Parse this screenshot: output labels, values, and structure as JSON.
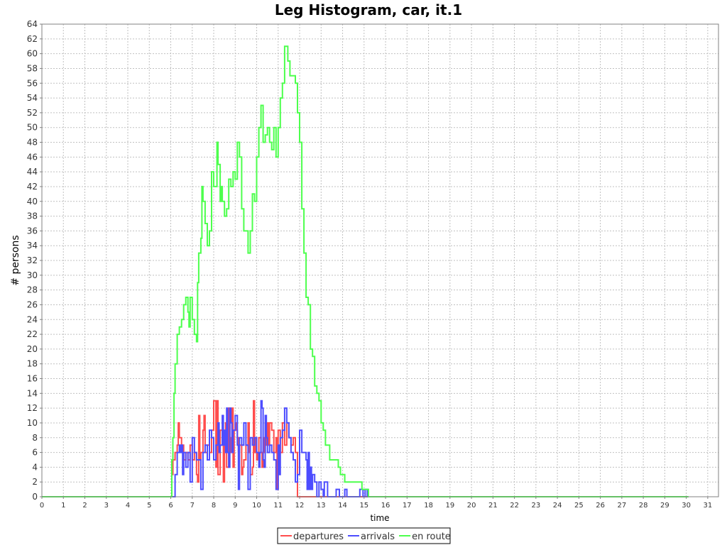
{
  "chart_data": {
    "type": "line",
    "title": "Leg Histogram, car, it.1",
    "xlabel": "time",
    "ylabel": "# persons",
    "xlim": [
      0,
      31.5
    ],
    "ylim": [
      0,
      64
    ],
    "x_ticks": [
      0,
      1,
      2,
      3,
      4,
      5,
      6,
      7,
      8,
      9,
      10,
      11,
      12,
      13,
      14,
      15,
      16,
      17,
      18,
      19,
      20,
      21,
      22,
      23,
      24,
      25,
      26,
      27,
      28,
      29,
      30,
      31
    ],
    "y_ticks": [
      0,
      2,
      4,
      6,
      8,
      10,
      12,
      14,
      16,
      18,
      20,
      22,
      24,
      26,
      28,
      30,
      32,
      34,
      36,
      38,
      40,
      42,
      44,
      46,
      48,
      50,
      52,
      54,
      56,
      58,
      60,
      62,
      64
    ],
    "grid": true,
    "legend_position": "bottom-center",
    "line_style": "step",
    "series": [
      {
        "name": "departures",
        "color": "#ff4d4d",
        "points": [
          [
            0,
            0
          ],
          [
            6,
            0
          ],
          [
            6.05,
            3
          ],
          [
            6.1,
            5
          ],
          [
            6.2,
            6
          ],
          [
            6.3,
            7
          ],
          [
            6.35,
            10
          ],
          [
            6.4,
            8
          ],
          [
            6.5,
            7
          ],
          [
            6.6,
            5
          ],
          [
            6.7,
            6
          ],
          [
            6.8,
            5
          ],
          [
            6.9,
            7
          ],
          [
            7.0,
            5
          ],
          [
            7.1,
            6
          ],
          [
            7.2,
            3
          ],
          [
            7.25,
            2
          ],
          [
            7.3,
            11
          ],
          [
            7.35,
            5
          ],
          [
            7.4,
            6
          ],
          [
            7.5,
            9
          ],
          [
            7.55,
            11
          ],
          [
            7.6,
            6
          ],
          [
            7.7,
            7
          ],
          [
            7.8,
            6
          ],
          [
            7.9,
            9
          ],
          [
            8.0,
            13
          ],
          [
            8.1,
            4
          ],
          [
            8.15,
            13
          ],
          [
            8.2,
            3
          ],
          [
            8.3,
            9
          ],
          [
            8.4,
            7
          ],
          [
            8.45,
            2
          ],
          [
            8.5,
            8
          ],
          [
            8.55,
            10
          ],
          [
            8.6,
            4
          ],
          [
            8.7,
            12
          ],
          [
            8.75,
            6
          ],
          [
            8.8,
            8
          ],
          [
            8.85,
            12
          ],
          [
            8.9,
            4
          ],
          [
            8.95,
            9
          ],
          [
            9.0,
            10
          ],
          [
            9.05,
            9
          ],
          [
            9.1,
            8
          ],
          [
            9.15,
            6
          ],
          [
            9.2,
            7
          ],
          [
            9.3,
            3
          ],
          [
            9.35,
            4
          ],
          [
            9.4,
            5
          ],
          [
            9.5,
            7
          ],
          [
            9.6,
            10
          ],
          [
            9.65,
            6
          ],
          [
            9.7,
            3
          ],
          [
            9.8,
            4
          ],
          [
            9.85,
            13
          ],
          [
            9.9,
            6
          ],
          [
            9.95,
            8
          ],
          [
            10.0,
            5
          ],
          [
            10.05,
            6
          ],
          [
            10.1,
            8
          ],
          [
            10.2,
            6
          ],
          [
            10.25,
            4
          ],
          [
            10.3,
            8
          ],
          [
            10.35,
            6
          ],
          [
            10.4,
            10
          ],
          [
            10.45,
            7
          ],
          [
            10.5,
            10
          ],
          [
            10.55,
            7
          ],
          [
            10.6,
            10
          ],
          [
            10.7,
            9
          ],
          [
            10.8,
            6
          ],
          [
            10.9,
            8
          ],
          [
            10.95,
            1
          ],
          [
            11.0,
            9
          ],
          [
            11.1,
            6
          ],
          [
            11.2,
            10
          ],
          [
            11.3,
            7
          ],
          [
            11.4,
            10
          ],
          [
            11.5,
            8
          ],
          [
            11.6,
            7
          ],
          [
            11.7,
            8
          ],
          [
            11.8,
            6
          ],
          [
            11.9,
            0
          ],
          [
            30.1,
            0
          ]
        ]
      },
      {
        "name": "arrivals",
        "color": "#4d4dff",
        "points": [
          [
            0,
            0
          ],
          [
            6.1,
            0
          ],
          [
            6.2,
            3
          ],
          [
            6.3,
            6
          ],
          [
            6.4,
            7
          ],
          [
            6.45,
            6
          ],
          [
            6.5,
            7
          ],
          [
            6.55,
            3
          ],
          [
            6.6,
            6
          ],
          [
            6.7,
            4
          ],
          [
            6.8,
            6
          ],
          [
            6.9,
            2
          ],
          [
            7.0,
            8
          ],
          [
            7.1,
            6
          ],
          [
            7.2,
            5
          ],
          [
            7.3,
            5
          ],
          [
            7.4,
            1
          ],
          [
            7.5,
            6
          ],
          [
            7.6,
            7
          ],
          [
            7.7,
            5
          ],
          [
            7.8,
            9
          ],
          [
            7.9,
            8
          ],
          [
            8.0,
            5
          ],
          [
            8.1,
            7
          ],
          [
            8.2,
            10
          ],
          [
            8.25,
            6
          ],
          [
            8.3,
            7
          ],
          [
            8.4,
            11
          ],
          [
            8.45,
            7
          ],
          [
            8.5,
            9
          ],
          [
            8.55,
            6
          ],
          [
            8.6,
            12
          ],
          [
            8.65,
            6
          ],
          [
            8.7,
            4
          ],
          [
            8.75,
            12
          ],
          [
            8.8,
            10
          ],
          [
            8.85,
            6
          ],
          [
            8.9,
            9
          ],
          [
            9.0,
            11
          ],
          [
            9.1,
            7
          ],
          [
            9.15,
            1
          ],
          [
            9.2,
            8
          ],
          [
            9.3,
            7
          ],
          [
            9.4,
            10
          ],
          [
            9.5,
            7
          ],
          [
            9.6,
            1
          ],
          [
            9.7,
            8
          ],
          [
            9.8,
            7
          ],
          [
            9.9,
            8
          ],
          [
            10.0,
            6
          ],
          [
            10.1,
            4
          ],
          [
            10.15,
            6
          ],
          [
            10.2,
            13
          ],
          [
            10.25,
            12
          ],
          [
            10.3,
            5
          ],
          [
            10.35,
            4
          ],
          [
            10.4,
            11
          ],
          [
            10.45,
            8
          ],
          [
            10.5,
            6
          ],
          [
            10.6,
            7
          ],
          [
            10.7,
            6
          ],
          [
            10.8,
            5
          ],
          [
            10.9,
            1
          ],
          [
            11.0,
            7
          ],
          [
            11.05,
            3
          ],
          [
            11.1,
            8
          ],
          [
            11.2,
            9
          ],
          [
            11.3,
            12
          ],
          [
            11.4,
            10
          ],
          [
            11.5,
            8
          ],
          [
            11.6,
            6
          ],
          [
            11.7,
            5
          ],
          [
            11.8,
            2
          ],
          [
            11.9,
            3
          ],
          [
            12.0,
            9
          ],
          [
            12.1,
            6
          ],
          [
            12.2,
            6
          ],
          [
            12.3,
            5
          ],
          [
            12.35,
            1
          ],
          [
            12.4,
            6
          ],
          [
            12.45,
            1
          ],
          [
            12.5,
            4
          ],
          [
            12.55,
            1
          ],
          [
            12.6,
            3
          ],
          [
            12.7,
            2
          ],
          [
            12.8,
            0
          ],
          [
            12.9,
            2
          ],
          [
            13.0,
            1
          ],
          [
            13.1,
            0
          ],
          [
            13.15,
            2
          ],
          [
            13.3,
            0
          ],
          [
            13.7,
            1
          ],
          [
            13.85,
            0
          ],
          [
            14.1,
            1
          ],
          [
            14.2,
            0
          ],
          [
            14.8,
            1
          ],
          [
            14.95,
            0
          ],
          [
            15.05,
            1
          ],
          [
            15.15,
            0
          ],
          [
            30.1,
            0
          ]
        ]
      },
      {
        "name": "en route",
        "color": "#4dff4d",
        "points": [
          [
            0,
            0
          ],
          [
            6.0,
            0
          ],
          [
            6.05,
            5
          ],
          [
            6.1,
            8
          ],
          [
            6.15,
            14
          ],
          [
            6.2,
            18
          ],
          [
            6.3,
            22
          ],
          [
            6.4,
            23
          ],
          [
            6.5,
            24
          ],
          [
            6.6,
            26
          ],
          [
            6.7,
            27
          ],
          [
            6.8,
            25
          ],
          [
            6.85,
            23
          ],
          [
            6.9,
            27
          ],
          [
            7.0,
            24
          ],
          [
            7.1,
            22
          ],
          [
            7.2,
            21
          ],
          [
            7.25,
            29
          ],
          [
            7.3,
            33
          ],
          [
            7.4,
            35
          ],
          [
            7.45,
            42
          ],
          [
            7.5,
            40
          ],
          [
            7.6,
            37
          ],
          [
            7.7,
            34
          ],
          [
            7.8,
            36
          ],
          [
            7.9,
            44
          ],
          [
            8.0,
            42
          ],
          [
            8.15,
            48
          ],
          [
            8.2,
            45
          ],
          [
            8.3,
            40
          ],
          [
            8.35,
            42
          ],
          [
            8.4,
            40
          ],
          [
            8.5,
            38
          ],
          [
            8.6,
            39
          ],
          [
            8.7,
            43
          ],
          [
            8.8,
            42
          ],
          [
            8.9,
            44
          ],
          [
            9.0,
            43
          ],
          [
            9.1,
            48
          ],
          [
            9.2,
            46
          ],
          [
            9.3,
            39
          ],
          [
            9.4,
            36
          ],
          [
            9.6,
            33
          ],
          [
            9.7,
            36
          ],
          [
            9.8,
            41
          ],
          [
            9.9,
            40
          ],
          [
            10.0,
            46
          ],
          [
            10.1,
            50
          ],
          [
            10.2,
            53
          ],
          [
            10.3,
            48
          ],
          [
            10.4,
            49
          ],
          [
            10.5,
            50
          ],
          [
            10.6,
            48
          ],
          [
            10.7,
            47
          ],
          [
            10.8,
            50
          ],
          [
            10.9,
            46
          ],
          [
            11.0,
            50
          ],
          [
            11.1,
            54
          ],
          [
            11.2,
            56
          ],
          [
            11.3,
            61
          ],
          [
            11.45,
            59
          ],
          [
            11.55,
            57
          ],
          [
            11.8,
            56
          ],
          [
            11.9,
            52
          ],
          [
            12.0,
            48
          ],
          [
            12.1,
            39
          ],
          [
            12.2,
            33
          ],
          [
            12.3,
            27
          ],
          [
            12.4,
            26
          ],
          [
            12.5,
            20
          ],
          [
            12.6,
            19
          ],
          [
            12.7,
            15
          ],
          [
            12.8,
            14
          ],
          [
            12.9,
            13
          ],
          [
            13.0,
            10
          ],
          [
            13.1,
            9
          ],
          [
            13.2,
            7
          ],
          [
            13.4,
            5
          ],
          [
            13.8,
            4
          ],
          [
            13.9,
            3
          ],
          [
            14.1,
            2
          ],
          [
            14.9,
            1
          ],
          [
            15.1,
            1
          ],
          [
            15.2,
            0
          ],
          [
            30.1,
            0
          ]
        ]
      }
    ]
  }
}
